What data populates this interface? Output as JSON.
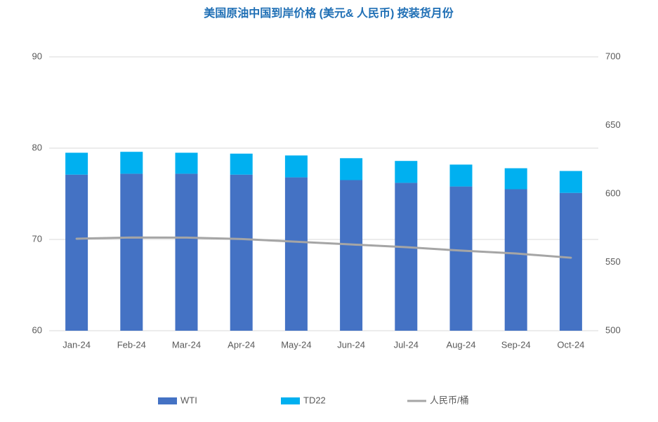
{
  "chart_data": {
    "type": "bar",
    "stacked": true,
    "title": "美国原油中国到岸价格 (美元& 人民币) 按装货月份",
    "categories": [
      "Jan-24",
      "Feb-24",
      "Mar-24",
      "Apr-24",
      "May-24",
      "Jun-24",
      "Jul-24",
      "Aug-24",
      "Sep-24",
      "Oct-24"
    ],
    "series": [
      {
        "name": "WTI",
        "color": "#4472c4",
        "values": [
          77.1,
          77.2,
          77.2,
          77.1,
          76.8,
          76.5,
          76.2,
          75.8,
          75.5,
          75.1
        ]
      },
      {
        "name": "TD22",
        "color": "#00b0f0",
        "values": [
          2.4,
          2.4,
          2.3,
          2.3,
          2.4,
          2.4,
          2.4,
          2.4,
          2.3,
          2.4
        ]
      },
      {
        "name": "人民币/桶",
        "color": "#a5a5a5",
        "type": "line",
        "axis": "y2",
        "values": [
          567.2,
          568.1,
          568,
          567,
          565,
          563,
          561,
          558.5,
          556.4,
          553.3
        ]
      }
    ],
    "ylim": [
      60,
      90
    ],
    "yticks": [
      60,
      70,
      80,
      90
    ],
    "y2lim": [
      500,
      700
    ],
    "y2ticks": [
      500,
      550,
      600,
      650,
      700
    ],
    "grid": true,
    "legend": "bottom"
  }
}
